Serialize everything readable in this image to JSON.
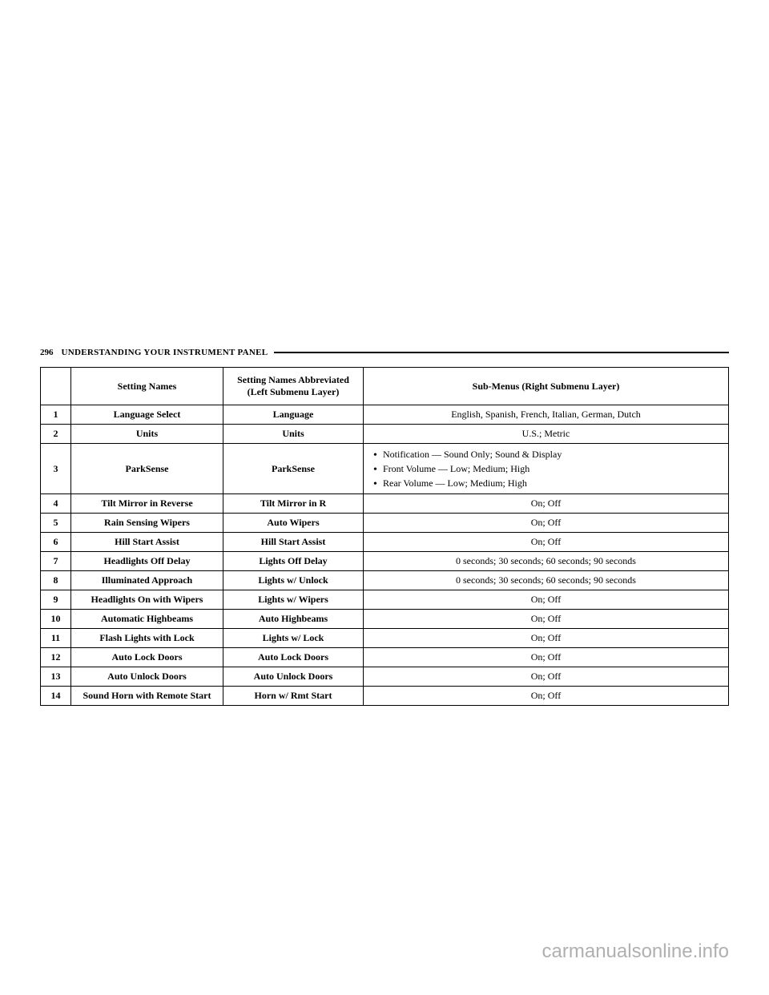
{
  "page_number": "296",
  "header_title": "UNDERSTANDING YOUR INSTRUMENT PANEL",
  "table": {
    "headers": {
      "col1": "",
      "col2": "Setting Names",
      "col3": "Setting Names Abbreviated (Left Submenu Layer)",
      "col4": "Sub-Menus (Right Submenu Layer)"
    },
    "rows": [
      {
        "num": "1",
        "name": "Language Select",
        "abbr": "Language",
        "sub": "English, Spanish, French, Italian, German, Dutch",
        "sub_align": "center"
      },
      {
        "num": "2",
        "name": "Units",
        "abbr": "Units",
        "sub": "U.S.; Metric",
        "sub_align": "center"
      },
      {
        "num": "3",
        "name": "ParkSense",
        "abbr": "ParkSense",
        "sub_type": "list",
        "sub_items": [
          "Notification — Sound Only; Sound & Display",
          "Front Volume — Low; Medium; High",
          "Rear Volume — Low; Medium; High"
        ]
      },
      {
        "num": "4",
        "name": "Tilt Mirror in Reverse",
        "abbr": "Tilt Mirror in R",
        "sub": "On; Off",
        "sub_align": "center"
      },
      {
        "num": "5",
        "name": "Rain Sensing Wipers",
        "abbr": "Auto Wipers",
        "sub": "On; Off",
        "sub_align": "center"
      },
      {
        "num": "6",
        "name": "Hill Start Assist",
        "abbr": "Hill Start Assist",
        "sub": "On; Off",
        "sub_align": "center"
      },
      {
        "num": "7",
        "name": "Headlights Off Delay",
        "abbr": "Lights Off Delay",
        "sub": "0 seconds; 30 seconds; 60 seconds; 90 seconds",
        "sub_align": "center"
      },
      {
        "num": "8",
        "name": "Illuminated Approach",
        "abbr": "Lights w/ Unlock",
        "sub": "0 seconds; 30 seconds; 60 seconds; 90 seconds",
        "sub_align": "center"
      },
      {
        "num": "9",
        "name": "Headlights On with Wipers",
        "abbr": "Lights w/ Wipers",
        "sub": "On; Off",
        "sub_align": "center"
      },
      {
        "num": "10",
        "name": "Automatic Highbeams",
        "abbr": "Auto Highbeams",
        "sub": "On; Off",
        "sub_align": "center"
      },
      {
        "num": "11",
        "name": "Flash Lights with Lock",
        "abbr": "Lights w/ Lock",
        "sub": "On; Off",
        "sub_align": "center"
      },
      {
        "num": "12",
        "name": "Auto Lock Doors",
        "abbr": "Auto Lock Doors",
        "sub": "On; Off",
        "sub_align": "center"
      },
      {
        "num": "13",
        "name": "Auto Unlock Doors",
        "abbr": "Auto Unlock Doors",
        "sub": "On; Off",
        "sub_align": "center"
      },
      {
        "num": "14",
        "name": "Sound Horn with Remote Start",
        "abbr": "Horn w/ Rmt Start",
        "sub": "On; Off",
        "sub_align": "center"
      }
    ]
  },
  "watermark": "carmanualsonline.info"
}
